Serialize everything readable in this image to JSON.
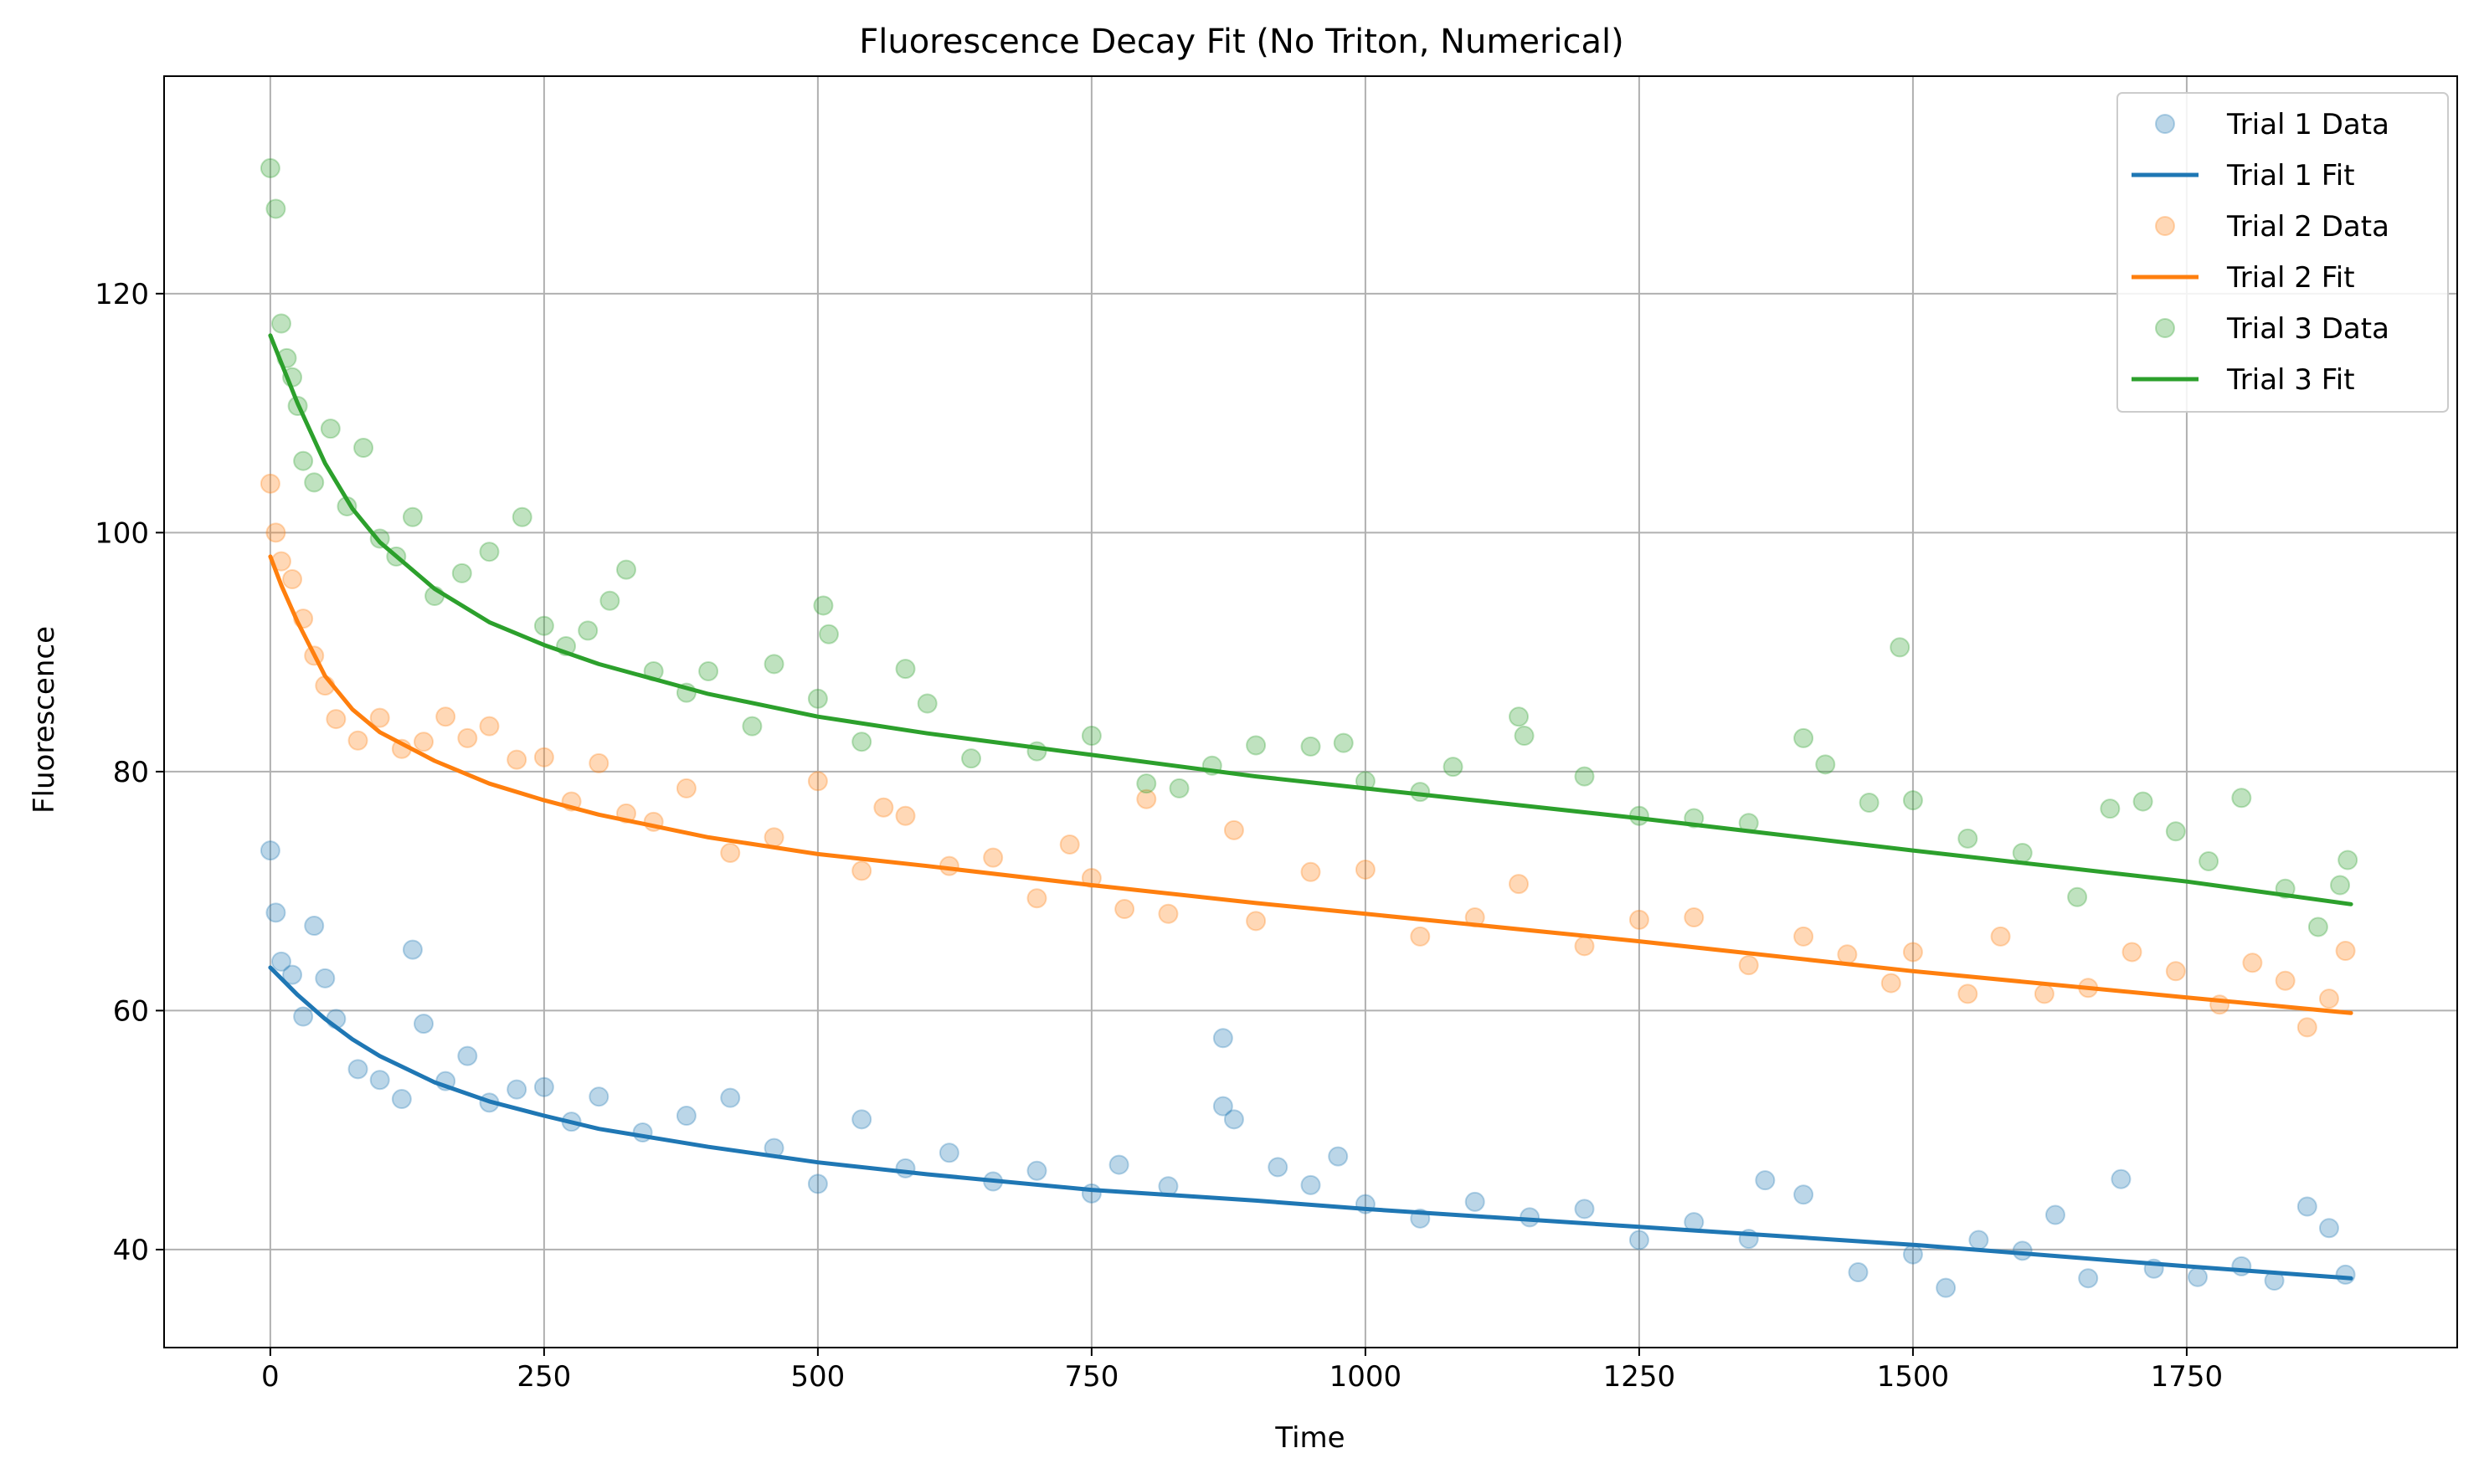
{
  "chart_data": {
    "type": "scatter",
    "title": "Fluorescence Decay Fit (No Triton, Numerical)",
    "xlabel": "Time",
    "ylabel": "Fluorescence",
    "xlim": [
      -97,
      1997
    ],
    "ylim": [
      31.8,
      138.2
    ],
    "xticks": [
      0,
      250,
      500,
      750,
      1000,
      1250,
      1500,
      1750
    ],
    "xtick_labels": [
      "0",
      "250",
      "500",
      "750",
      "1000",
      "1250",
      "1500",
      "1750"
    ],
    "yticks": [
      40,
      60,
      80,
      100,
      120
    ],
    "ytick_labels": [
      "40",
      "60",
      "80",
      "100",
      "120"
    ],
    "grid": true,
    "legend_position": "top-right",
    "series": [
      {
        "name": "Trial 1 Data",
        "kind": "scatter",
        "color": "#1f77b4",
        "points": [
          [
            0,
            73.4
          ],
          [
            5,
            68.2
          ],
          [
            10,
            64.1
          ],
          [
            20,
            63.0
          ],
          [
            30,
            59.5
          ],
          [
            40,
            67.1
          ],
          [
            50,
            62.7
          ],
          [
            60,
            59.3
          ],
          [
            80,
            55.1
          ],
          [
            100,
            54.2
          ],
          [
            120,
            52.6
          ],
          [
            130,
            65.1
          ],
          [
            140,
            58.9
          ],
          [
            160,
            54.1
          ],
          [
            180,
            56.2
          ],
          [
            200,
            52.3
          ],
          [
            225,
            53.4
          ],
          [
            250,
            53.6
          ],
          [
            275,
            50.7
          ],
          [
            300,
            52.8
          ],
          [
            340,
            49.8
          ],
          [
            380,
            51.2
          ],
          [
            420,
            52.7
          ],
          [
            460,
            48.5
          ],
          [
            500,
            45.5
          ],
          [
            540,
            50.9
          ],
          [
            580,
            46.8
          ],
          [
            620,
            48.1
          ],
          [
            660,
            45.7
          ],
          [
            700,
            46.6
          ],
          [
            750,
            44.7
          ],
          [
            775,
            47.1
          ],
          [
            820,
            45.3
          ],
          [
            870,
            57.7
          ],
          [
            870,
            52.0
          ],
          [
            880,
            50.9
          ],
          [
            920,
            46.9
          ],
          [
            950,
            45.4
          ],
          [
            975,
            47.8
          ],
          [
            1000,
            43.8
          ],
          [
            1050,
            42.6
          ],
          [
            1100,
            44.0
          ],
          [
            1150,
            42.7
          ],
          [
            1200,
            43.4
          ],
          [
            1250,
            40.8
          ],
          [
            1300,
            42.3
          ],
          [
            1350,
            40.9
          ],
          [
            1365,
            45.8
          ],
          [
            1400,
            44.6
          ],
          [
            1450,
            38.1
          ],
          [
            1500,
            39.6
          ],
          [
            1530,
            36.8
          ],
          [
            1560,
            40.8
          ],
          [
            1600,
            39.9
          ],
          [
            1630,
            42.9
          ],
          [
            1660,
            37.6
          ],
          [
            1690,
            45.9
          ],
          [
            1720,
            38.4
          ],
          [
            1760,
            37.7
          ],
          [
            1800,
            38.6
          ],
          [
            1830,
            37.4
          ],
          [
            1860,
            43.6
          ],
          [
            1880,
            41.8
          ],
          [
            1895,
            37.9
          ]
        ]
      },
      {
        "name": "Trial 1 Fit",
        "kind": "line",
        "color": "#1f77b4",
        "points": [
          [
            0,
            63.6
          ],
          [
            25,
            61.3
          ],
          [
            50,
            59.3
          ],
          [
            75,
            57.6
          ],
          [
            100,
            56.2
          ],
          [
            150,
            54.0
          ],
          [
            200,
            52.4
          ],
          [
            250,
            51.2
          ],
          [
            300,
            50.1
          ],
          [
            400,
            48.6
          ],
          [
            500,
            47.3
          ],
          [
            600,
            46.3
          ],
          [
            750,
            45.0
          ],
          [
            900,
            44.1
          ],
          [
            1000,
            43.4
          ],
          [
            1250,
            41.9
          ],
          [
            1500,
            40.4
          ],
          [
            1750,
            38.6
          ],
          [
            1900,
            37.6
          ]
        ]
      },
      {
        "name": "Trial 2 Data",
        "kind": "scatter",
        "color": "#ff7f0e",
        "points": [
          [
            0,
            104.1
          ],
          [
            5,
            100.0
          ],
          [
            10,
            97.6
          ],
          [
            20,
            96.1
          ],
          [
            30,
            92.8
          ],
          [
            40,
            89.7
          ],
          [
            50,
            87.2
          ],
          [
            60,
            84.4
          ],
          [
            80,
            82.6
          ],
          [
            100,
            84.5
          ],
          [
            120,
            81.9
          ],
          [
            140,
            82.5
          ],
          [
            160,
            84.6
          ],
          [
            180,
            82.8
          ],
          [
            200,
            83.8
          ],
          [
            225,
            81.0
          ],
          [
            250,
            81.2
          ],
          [
            275,
            77.5
          ],
          [
            300,
            80.7
          ],
          [
            325,
            76.5
          ],
          [
            350,
            75.8
          ],
          [
            380,
            78.6
          ],
          [
            420,
            73.2
          ],
          [
            460,
            74.5
          ],
          [
            500,
            79.2
          ],
          [
            540,
            71.7
          ],
          [
            560,
            77.0
          ],
          [
            580,
            76.3
          ],
          [
            620,
            72.1
          ],
          [
            660,
            72.8
          ],
          [
            700,
            69.4
          ],
          [
            730,
            73.9
          ],
          [
            750,
            71.1
          ],
          [
            780,
            68.5
          ],
          [
            800,
            77.7
          ],
          [
            820,
            68.1
          ],
          [
            880,
            75.1
          ],
          [
            900,
            67.5
          ],
          [
            950,
            71.6
          ],
          [
            1000,
            71.8
          ],
          [
            1050,
            66.2
          ],
          [
            1100,
            67.8
          ],
          [
            1140,
            70.6
          ],
          [
            1200,
            65.4
          ],
          [
            1250,
            67.6
          ],
          [
            1300,
            67.8
          ],
          [
            1350,
            63.8
          ],
          [
            1400,
            66.2
          ],
          [
            1440,
            64.7
          ],
          [
            1480,
            62.3
          ],
          [
            1500,
            64.9
          ],
          [
            1550,
            61.4
          ],
          [
            1580,
            66.2
          ],
          [
            1620,
            61.4
          ],
          [
            1660,
            61.9
          ],
          [
            1700,
            64.9
          ],
          [
            1740,
            63.3
          ],
          [
            1780,
            60.5
          ],
          [
            1810,
            64.0
          ],
          [
            1840,
            62.5
          ],
          [
            1860,
            58.6
          ],
          [
            1880,
            61.0
          ],
          [
            1895,
            65.0
          ]
        ]
      },
      {
        "name": "Trial 2 Fit",
        "kind": "line",
        "color": "#ff7f0e",
        "points": [
          [
            0,
            98.0
          ],
          [
            10,
            95.6
          ],
          [
            25,
            92.5
          ],
          [
            50,
            88.0
          ],
          [
            75,
            85.2
          ],
          [
            100,
            83.3
          ],
          [
            150,
            80.9
          ],
          [
            200,
            79.0
          ],
          [
            250,
            77.6
          ],
          [
            300,
            76.4
          ],
          [
            400,
            74.5
          ],
          [
            500,
            73.1
          ],
          [
            600,
            72.1
          ],
          [
            750,
            70.5
          ],
          [
            900,
            69.0
          ],
          [
            1000,
            68.1
          ],
          [
            1250,
            65.8
          ],
          [
            1500,
            63.3
          ],
          [
            1750,
            61.1
          ],
          [
            1900,
            59.8
          ]
        ]
      },
      {
        "name": "Trial 3 Data",
        "kind": "scatter",
        "color": "#2ca02c",
        "points": [
          [
            0,
            130.5
          ],
          [
            5,
            127.1
          ],
          [
            10,
            117.5
          ],
          [
            15,
            114.6
          ],
          [
            20,
            113.0
          ],
          [
            25,
            110.6
          ],
          [
            30,
            106.0
          ],
          [
            40,
            104.2
          ],
          [
            55,
            108.7
          ],
          [
            70,
            102.2
          ],
          [
            85,
            107.1
          ],
          [
            100,
            99.5
          ],
          [
            115,
            98.0
          ],
          [
            130,
            101.3
          ],
          [
            150,
            94.7
          ],
          [
            175,
            96.6
          ],
          [
            200,
            98.4
          ],
          [
            230,
            101.3
          ],
          [
            250,
            92.2
          ],
          [
            270,
            90.5
          ],
          [
            290,
            91.8
          ],
          [
            310,
            94.3
          ],
          [
            325,
            96.9
          ],
          [
            350,
            88.4
          ],
          [
            380,
            86.6
          ],
          [
            400,
            88.4
          ],
          [
            440,
            83.8
          ],
          [
            460,
            89.0
          ],
          [
            500,
            86.1
          ],
          [
            505,
            93.9
          ],
          [
            510,
            91.5
          ],
          [
            540,
            82.5
          ],
          [
            580,
            88.6
          ],
          [
            600,
            85.7
          ],
          [
            640,
            81.1
          ],
          [
            700,
            81.7
          ],
          [
            750,
            83.0
          ],
          [
            800,
            79.0
          ],
          [
            830,
            78.6
          ],
          [
            860,
            80.5
          ],
          [
            900,
            82.2
          ],
          [
            950,
            82.1
          ],
          [
            980,
            82.4
          ],
          [
            1000,
            79.2
          ],
          [
            1050,
            78.3
          ],
          [
            1080,
            80.4
          ],
          [
            1140,
            84.6
          ],
          [
            1145,
            83.0
          ],
          [
            1200,
            79.6
          ],
          [
            1250,
            76.3
          ],
          [
            1300,
            76.1
          ],
          [
            1350,
            75.7
          ],
          [
            1400,
            82.8
          ],
          [
            1420,
            80.6
          ],
          [
            1460,
            77.4
          ],
          [
            1488,
            90.4
          ],
          [
            1500,
            77.6
          ],
          [
            1550,
            74.4
          ],
          [
            1600,
            73.2
          ],
          [
            1650,
            69.5
          ],
          [
            1680,
            76.9
          ],
          [
            1710,
            77.5
          ],
          [
            1740,
            75.0
          ],
          [
            1770,
            72.5
          ],
          [
            1800,
            77.8
          ],
          [
            1840,
            70.2
          ],
          [
            1870,
            67.0
          ],
          [
            1890,
            70.5
          ],
          [
            1897,
            72.6
          ]
        ]
      },
      {
        "name": "Trial 3 Fit",
        "kind": "line",
        "color": "#2ca02c",
        "points": [
          [
            0,
            116.5
          ],
          [
            10,
            114.2
          ],
          [
            25,
            110.8
          ],
          [
            50,
            105.8
          ],
          [
            75,
            102.0
          ],
          [
            100,
            99.2
          ],
          [
            150,
            95.3
          ],
          [
            200,
            92.5
          ],
          [
            250,
            90.6
          ],
          [
            300,
            89.0
          ],
          [
            400,
            86.5
          ],
          [
            500,
            84.6
          ],
          [
            600,
            83.2
          ],
          [
            750,
            81.4
          ],
          [
            900,
            79.6
          ],
          [
            1000,
            78.6
          ],
          [
            1250,
            76.1
          ],
          [
            1500,
            73.4
          ],
          [
            1750,
            70.8
          ],
          [
            1900,
            68.9
          ]
        ]
      }
    ]
  }
}
